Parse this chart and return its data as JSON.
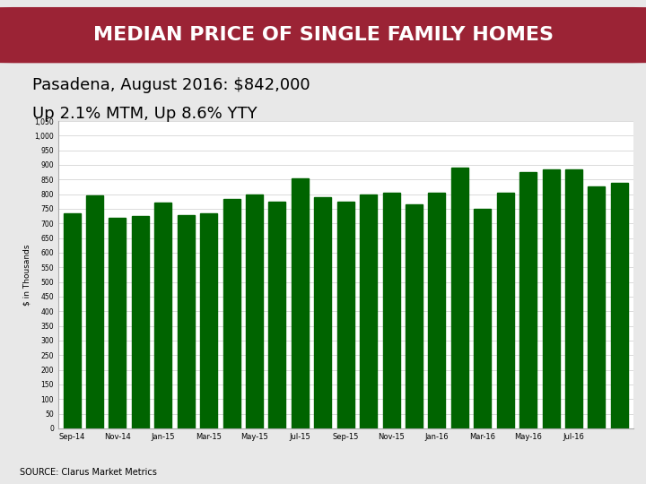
{
  "title": "MEDIAN PRICE OF SINGLE FAMILY HOMES",
  "subtitle_line1": "Pasadena, August 2016: $842,000",
  "subtitle_line2": "Up 2.1% MTM, Up 8.6% YTY",
  "source": "SOURCE: Clarus Market Metrics",
  "values": [
    735,
    795,
    720,
    725,
    770,
    730,
    735,
    785,
    800,
    775,
    855,
    790,
    775,
    800,
    805,
    765,
    805,
    890,
    750,
    805,
    875,
    885,
    885,
    825,
    840
  ],
  "bar_color": "#006400",
  "title_bg_color": "#9B2335",
  "title_text_color": "#FFFFFF",
  "ylabel": "$ in Thousands",
  "ylim_max": 1050,
  "background_color": "#E8E8E8",
  "chart_bg_color": "#FFFFFF",
  "title_fontsize": 16,
  "subtitle1_fontsize": 13,
  "subtitle2_fontsize": 13,
  "source_fontsize": 7,
  "x_labels": [
    "Sep-14",
    "",
    "Nov-14",
    "",
    "Jan-15",
    "",
    "Mar-15",
    "",
    "May-15",
    "",
    "Jul-15",
    "",
    "Sep-15",
    "",
    "Nov-15",
    "",
    "Jan-16",
    "",
    "Mar-16",
    "",
    "May-16",
    "",
    "Jul-16",
    "",
    ""
  ]
}
